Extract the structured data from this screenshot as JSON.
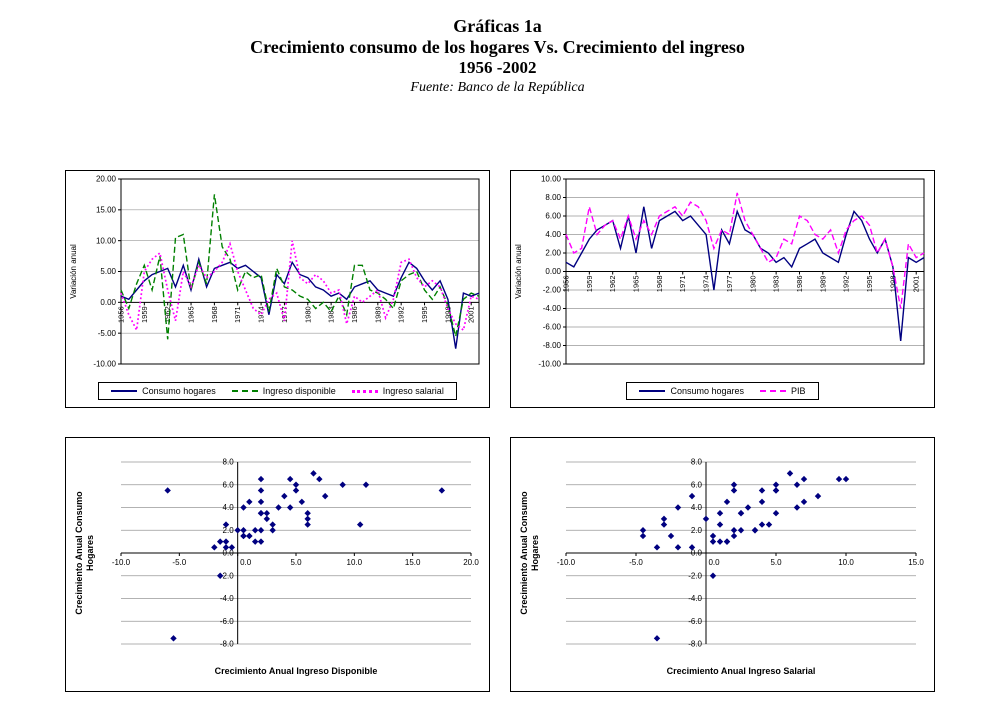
{
  "header": {
    "title": "Gráficas 1a",
    "subtitle": "Crecimiento consumo de los hogares Vs. Crecimiento del ingreso",
    "period": "1956 -2002",
    "source": "Fuente: Banco de la República"
  },
  "colors": {
    "consumo_hogares": "#000080",
    "ingreso_disponible": "#008000",
    "ingreso_salarial": "#FF00FF",
    "pib": "#FF00FF",
    "scatter_marker": "#000080",
    "gridline": "#999999",
    "axis": "#000000"
  },
  "chart_data": [
    {
      "type": "line",
      "id": "line-chart-consumo-vs-ingresos",
      "ylabel": "Variación anual",
      "ylim": [
        -10,
        20
      ],
      "ytick_step": 5,
      "ytick_decimals": 2,
      "grid": true,
      "legend_position": "bottom",
      "xtick_every": 3,
      "x": [
        1956,
        1957,
        1958,
        1959,
        1960,
        1961,
        1962,
        1963,
        1964,
        1965,
        1966,
        1967,
        1968,
        1969,
        1970,
        1971,
        1972,
        1973,
        1974,
        1975,
        1976,
        1977,
        1978,
        1979,
        1980,
        1981,
        1982,
        1983,
        1984,
        1985,
        1986,
        1987,
        1988,
        1989,
        1990,
        1991,
        1992,
        1993,
        1994,
        1995,
        1996,
        1997,
        1998,
        1999,
        2000,
        2001,
        2002
      ],
      "series": [
        {
          "name": "Consumo hogares",
          "color": "#000080",
          "dash": "solid",
          "values": [
            1.0,
            0.5,
            2.0,
            3.5,
            4.5,
            5.0,
            5.5,
            2.5,
            6.0,
            2.0,
            7.0,
            2.5,
            5.5,
            6.0,
            6.5,
            5.5,
            6.0,
            5.0,
            4.0,
            -2.0,
            4.5,
            3.0,
            6.5,
            4.5,
            4.0,
            2.5,
            2.0,
            1.0,
            1.5,
            0.5,
            2.5,
            3.0,
            3.5,
            2.0,
            1.5,
            1.0,
            4.0,
            6.5,
            5.5,
            3.5,
            2.0,
            3.5,
            0.5,
            -7.5,
            1.5,
            1.0,
            1.5
          ]
        },
        {
          "name": "Ingreso disponible",
          "color": "#008000",
          "dash": "dashed",
          "values": [
            2.0,
            -1.0,
            3.0,
            6.0,
            2.0,
            7.5,
            -6.0,
            10.5,
            11.0,
            2.0,
            6.5,
            3.0,
            17.5,
            9.0,
            7.0,
            2.0,
            5.0,
            4.0,
            4.5,
            -1.5,
            5.5,
            2.5,
            2.0,
            1.0,
            0.5,
            -1.0,
            0.0,
            -1.5,
            1.0,
            -2.0,
            6.0,
            6.0,
            2.0,
            1.5,
            0.5,
            -1.0,
            3.5,
            4.5,
            5.0,
            2.0,
            0.5,
            2.5,
            -0.5,
            -5.5,
            0.5,
            1.5,
            1.0
          ]
        },
        {
          "name": "Ingreso salarial",
          "color": "#FF00FF",
          "dash": "dotted",
          "values": [
            1.5,
            -2.0,
            -4.5,
            5.0,
            7.0,
            8.0,
            2.0,
            -3.0,
            5.0,
            2.5,
            6.0,
            4.0,
            5.0,
            6.5,
            9.5,
            5.0,
            2.0,
            -1.0,
            -2.0,
            0.5,
            1.5,
            -3.0,
            10.0,
            4.0,
            3.0,
            4.5,
            3.5,
            1.5,
            2.0,
            -3.5,
            1.0,
            0.0,
            1.0,
            2.0,
            -2.5,
            0.5,
            6.5,
            7.0,
            4.0,
            2.5,
            3.5,
            2.5,
            -1.0,
            -3.5,
            -4.5,
            1.0,
            0.5
          ]
        }
      ]
    },
    {
      "type": "line",
      "id": "line-chart-consumo-vs-pib",
      "ylabel": "Variación anual",
      "ylim": [
        -10,
        10
      ],
      "ytick_step": 2,
      "ytick_decimals": 2,
      "grid": true,
      "legend_position": "bottom",
      "xtick_every": 3,
      "x": [
        1956,
        1957,
        1958,
        1959,
        1960,
        1961,
        1962,
        1963,
        1964,
        1965,
        1966,
        1967,
        1968,
        1969,
        1970,
        1971,
        1972,
        1973,
        1974,
        1975,
        1976,
        1977,
        1978,
        1979,
        1980,
        1981,
        1982,
        1983,
        1984,
        1985,
        1986,
        1987,
        1988,
        1989,
        1990,
        1991,
        1992,
        1993,
        1994,
        1995,
        1996,
        1997,
        1998,
        1999,
        2000,
        2001,
        2002
      ],
      "series": [
        {
          "name": "Consumo hogares",
          "color": "#000080",
          "dash": "solid",
          "values": [
            1.0,
            0.5,
            2.0,
            3.5,
            4.5,
            5.0,
            5.5,
            2.5,
            6.0,
            2.0,
            7.0,
            2.5,
            5.5,
            6.0,
            6.5,
            5.5,
            6.0,
            5.0,
            4.0,
            -2.0,
            4.5,
            3.0,
            6.5,
            4.5,
            4.0,
            2.5,
            2.0,
            1.0,
            1.5,
            0.5,
            2.5,
            3.0,
            3.5,
            2.0,
            1.5,
            1.0,
            4.0,
            6.5,
            5.5,
            3.5,
            2.0,
            3.5,
            0.5,
            -7.5,
            1.5,
            1.0,
            1.5
          ]
        },
        {
          "name": "PIB",
          "color": "#FF00FF",
          "dash": "dashed",
          "values": [
            4.0,
            2.0,
            2.5,
            7.0,
            4.0,
            5.0,
            5.5,
            3.5,
            6.0,
            3.5,
            5.5,
            4.0,
            6.0,
            6.5,
            7.0,
            6.0,
            7.5,
            7.0,
            5.5,
            2.5,
            4.5,
            4.0,
            8.5,
            5.5,
            4.0,
            2.5,
            1.0,
            1.5,
            3.5,
            3.0,
            6.0,
            5.5,
            4.0,
            3.5,
            4.5,
            2.0,
            4.5,
            5.5,
            6.0,
            5.0,
            2.0,
            3.5,
            0.5,
            -4.0,
            3.0,
            1.5,
            2.0
          ]
        }
      ]
    },
    {
      "type": "scatter",
      "id": "scatter-consumo-vs-disponible",
      "xlabel": "Crecimiento Anual Ingreso Disponible",
      "ylabel_lines": [
        "Crecimiento Anual Consumo",
        "Hogares"
      ],
      "xlim": [
        -10,
        20
      ],
      "xtick_step": 5,
      "ylim": [
        -8,
        8
      ],
      "ytick_step": 2,
      "tick_decimals": 1,
      "marker": "diamond",
      "x_values": [
        2.0,
        -1.0,
        3.0,
        6.0,
        2.0,
        7.5,
        -6.0,
        10.5,
        11.0,
        2.0,
        6.5,
        3.0,
        17.5,
        9.0,
        7.0,
        2.0,
        5.0,
        4.0,
        4.5,
        -1.5,
        5.5,
        2.5,
        2.0,
        1.0,
        0.5,
        -1.0,
        0.0,
        -1.5,
        1.0,
        -2.0,
        6.0,
        6.0,
        2.0,
        1.5,
        0.5,
        -1.0,
        3.5,
        4.5,
        5.0,
        2.0,
        0.5,
        2.5,
        -0.5,
        -5.5,
        0.5,
        1.5,
        1.0
      ],
      "y_values": [
        1.0,
        0.5,
        2.0,
        3.5,
        4.5,
        5.0,
        5.5,
        2.5,
        6.0,
        2.0,
        7.0,
        2.5,
        5.5,
        6.0,
        6.5,
        5.5,
        6.0,
        5.0,
        4.0,
        -2.0,
        4.5,
        3.0,
        6.5,
        4.5,
        4.0,
        2.5,
        2.0,
        1.0,
        1.5,
        0.5,
        2.5,
        3.0,
        3.5,
        2.0,
        1.5,
        1.0,
        4.0,
        6.5,
        5.5,
        3.5,
        2.0,
        3.5,
        0.5,
        -7.5,
        1.5,
        1.0,
        1.5
      ]
    },
    {
      "type": "scatter",
      "id": "scatter-consumo-vs-salarial",
      "xlabel": "Crecimiento Anual Ingreso Salarial",
      "ylabel_lines": [
        "Crecimiento Anual Consumo",
        "Hogares"
      ],
      "xlim": [
        -10,
        15
      ],
      "xtick_step": 5,
      "ylim": [
        -8,
        8
      ],
      "ytick_step": 2,
      "tick_decimals": 1,
      "marker": "diamond",
      "x_values": [
        1.5,
        -2.0,
        -4.5,
        5.0,
        7.0,
        8.0,
        2.0,
        -3.0,
        5.0,
        2.5,
        6.0,
        4.0,
        5.0,
        6.5,
        9.5,
        5.0,
        2.0,
        -1.0,
        -2.0,
        0.5,
        1.5,
        -3.0,
        10.0,
        4.0,
        3.0,
        4.5,
        3.5,
        1.5,
        2.0,
        -3.5,
        1.0,
        0.0,
        1.0,
        2.0,
        -2.5,
        0.5,
        6.5,
        7.0,
        4.0,
        2.5,
        3.5,
        2.5,
        -1.0,
        -3.5,
        -4.5,
        1.0,
        0.5
      ],
      "y_values": [
        1.0,
        0.5,
        2.0,
        3.5,
        4.5,
        5.0,
        5.5,
        2.5,
        6.0,
        2.0,
        7.0,
        2.5,
        5.5,
        6.0,
        6.5,
        5.5,
        6.0,
        5.0,
        4.0,
        -2.0,
        4.5,
        3.0,
        6.5,
        4.5,
        4.0,
        2.5,
        2.0,
        1.0,
        1.5,
        0.5,
        2.5,
        3.0,
        3.5,
        2.0,
        1.5,
        1.0,
        4.0,
        6.5,
        5.5,
        3.5,
        2.0,
        3.5,
        0.5,
        -7.5,
        1.5,
        1.0,
        1.5
      ]
    }
  ]
}
